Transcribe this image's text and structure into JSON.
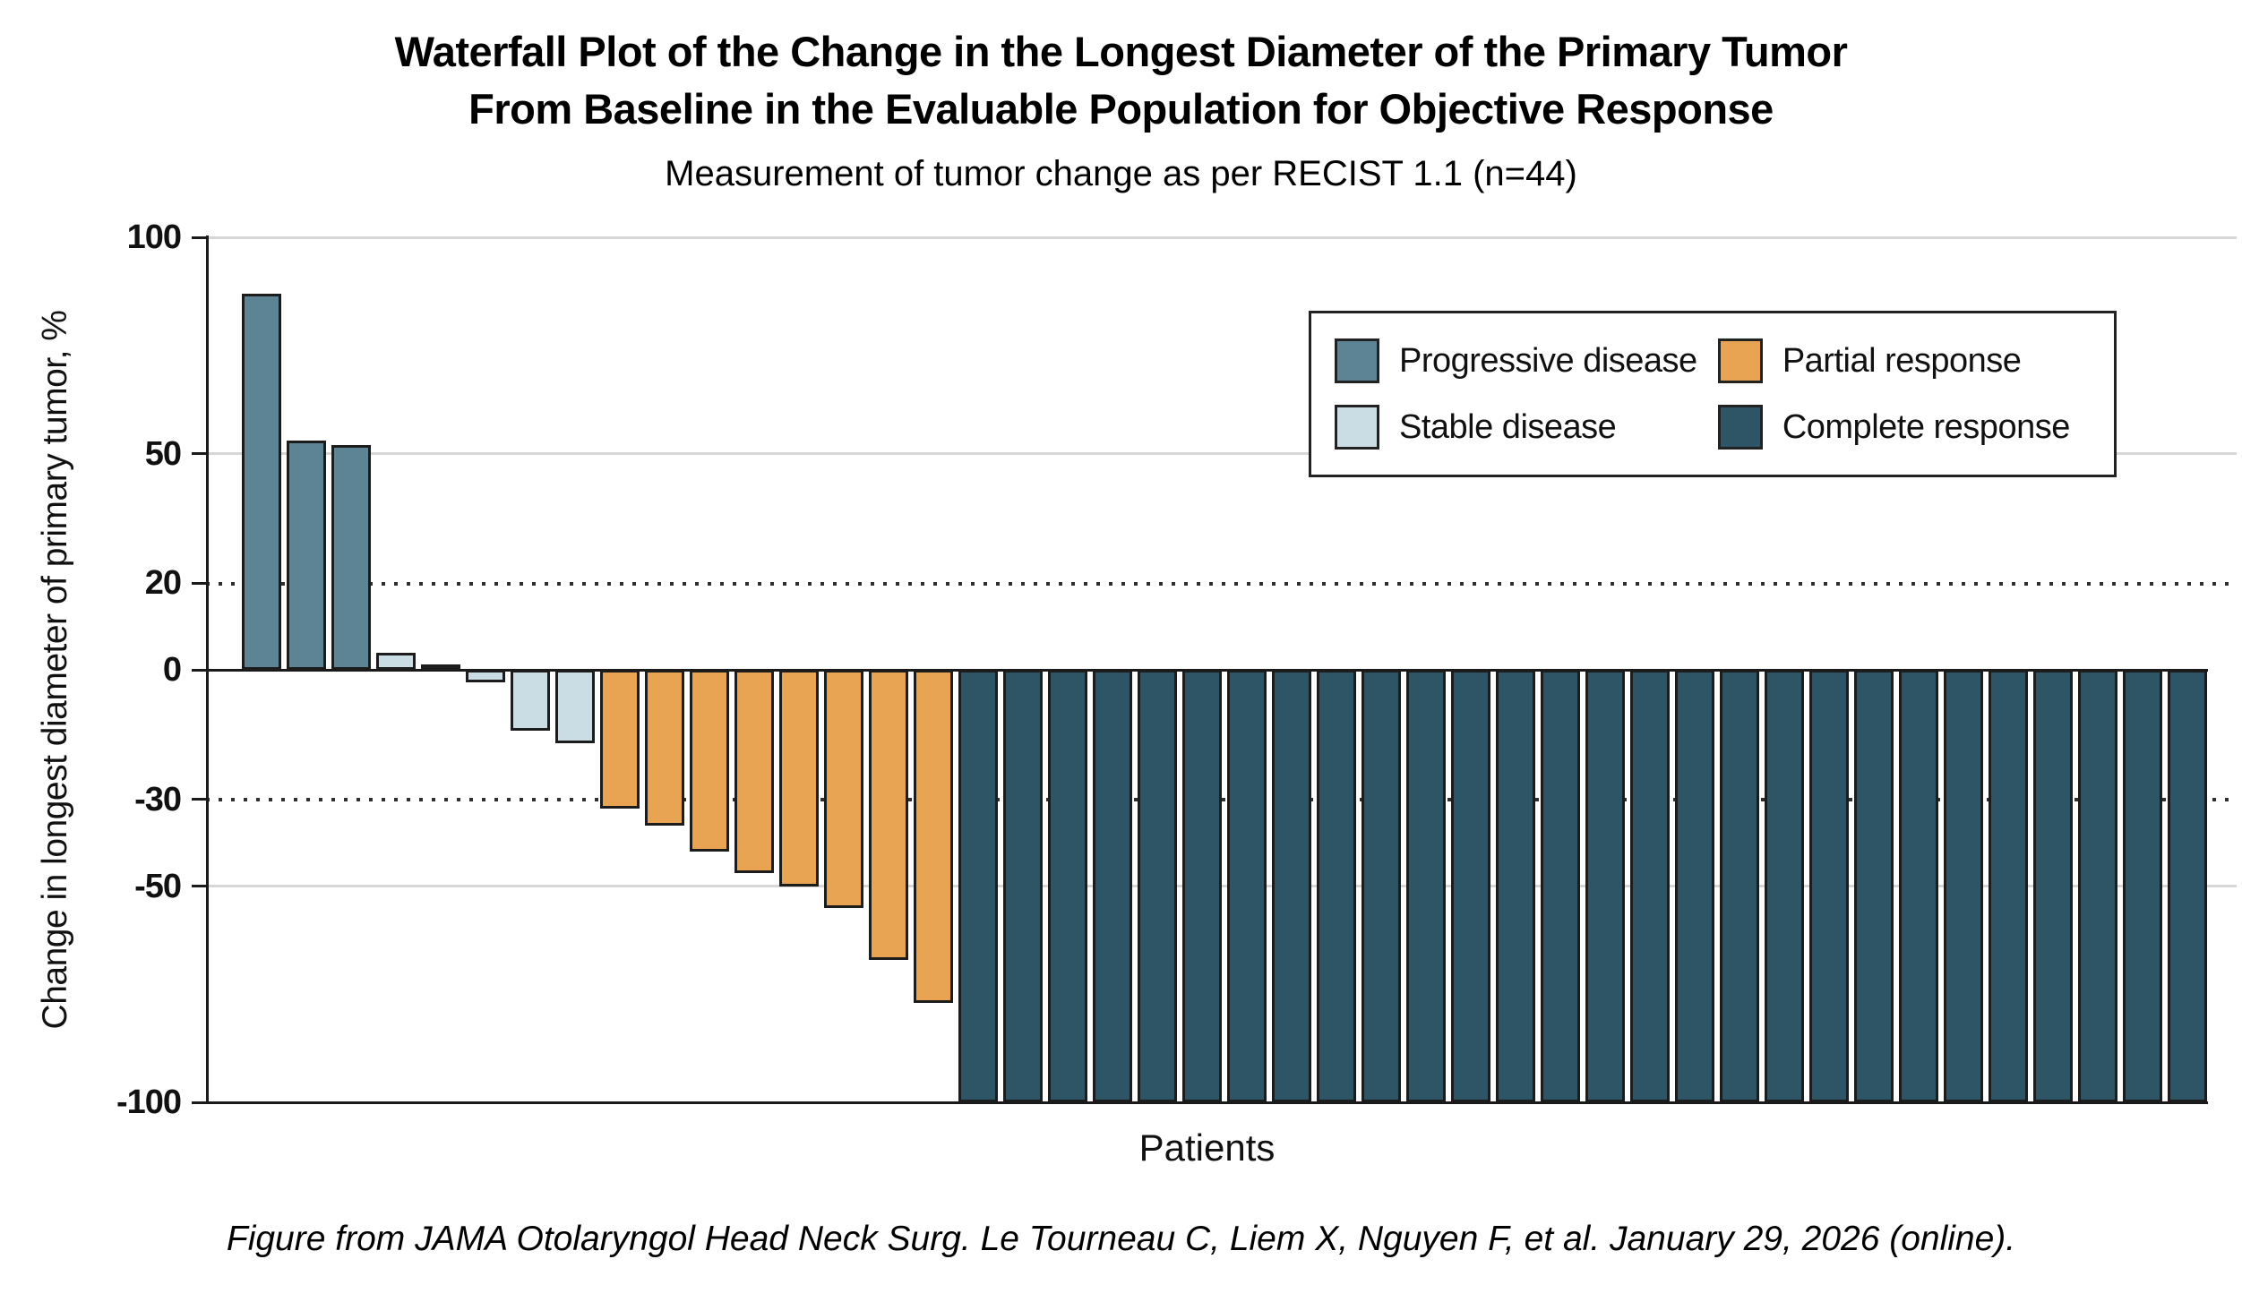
{
  "header": {
    "title_line1": "Waterfall Plot of the Change in the Longest Diameter of the Primary Tumor",
    "title_line2": "From Baseline in the Evaluable Population for Objective Response",
    "subtitle": "Measurement of tumor change as per RECIST 1.1 (n=44)"
  },
  "chart_data": {
    "type": "bar",
    "title": "Waterfall Plot of the Change in the Longest Diameter of the Primary Tumor From Baseline in the Evaluable Population for Objective Response",
    "subtitle": "Measurement of tumor change as per RECIST 1.1 (n=44)",
    "xlabel": "Patients",
    "ylabel": "Change in longest diameter of primary tumor, %",
    "n": 44,
    "ylim": [
      -100,
      100
    ],
    "y_ticks": [
      100,
      50,
      20,
      0,
      -30,
      -50,
      -100
    ],
    "gridlines": {
      "solid_gray": [
        100,
        50,
        -50
      ],
      "dotted_black": [
        20,
        -30
      ],
      "solid_black": [
        0,
        -100
      ]
    },
    "legend_position": "upper right",
    "legend": [
      {
        "key": "progressive",
        "label": "Progressive disease",
        "color": "#5c8495"
      },
      {
        "key": "stable",
        "label": "Stable disease",
        "color": "#cadce4"
      },
      {
        "key": "partial",
        "label": "Partial response",
        "color": "#e8a353"
      },
      {
        "key": "complete",
        "label": "Complete response",
        "color": "#2e5566"
      }
    ],
    "bars": [
      {
        "value": 87,
        "response": "progressive"
      },
      {
        "value": 53,
        "response": "progressive"
      },
      {
        "value": 52,
        "response": "progressive"
      },
      {
        "value": 4,
        "response": "stable"
      },
      {
        "value": 1,
        "response": "stable"
      },
      {
        "value": -3,
        "response": "stable"
      },
      {
        "value": -14,
        "response": "stable"
      },
      {
        "value": -17,
        "response": "stable"
      },
      {
        "value": -32,
        "response": "partial"
      },
      {
        "value": -36,
        "response": "partial"
      },
      {
        "value": -42,
        "response": "partial"
      },
      {
        "value": -47,
        "response": "partial"
      },
      {
        "value": -50,
        "response": "partial"
      },
      {
        "value": -55,
        "response": "partial"
      },
      {
        "value": -67,
        "response": "partial"
      },
      {
        "value": -77,
        "response": "partial"
      },
      {
        "value": -100,
        "response": "complete"
      },
      {
        "value": -100,
        "response": "complete"
      },
      {
        "value": -100,
        "response": "complete"
      },
      {
        "value": -100,
        "response": "complete"
      },
      {
        "value": -100,
        "response": "complete"
      },
      {
        "value": -100,
        "response": "complete"
      },
      {
        "value": -100,
        "response": "complete"
      },
      {
        "value": -100,
        "response": "complete"
      },
      {
        "value": -100,
        "response": "complete"
      },
      {
        "value": -100,
        "response": "complete"
      },
      {
        "value": -100,
        "response": "complete"
      },
      {
        "value": -100,
        "response": "complete"
      },
      {
        "value": -100,
        "response": "complete"
      },
      {
        "value": -100,
        "response": "complete"
      },
      {
        "value": -100,
        "response": "complete"
      },
      {
        "value": -100,
        "response": "complete"
      },
      {
        "value": -100,
        "response": "complete"
      },
      {
        "value": -100,
        "response": "complete"
      },
      {
        "value": -100,
        "response": "complete"
      },
      {
        "value": -100,
        "response": "complete"
      },
      {
        "value": -100,
        "response": "complete"
      },
      {
        "value": -100,
        "response": "complete"
      },
      {
        "value": -100,
        "response": "complete"
      },
      {
        "value": -100,
        "response": "complete"
      },
      {
        "value": -100,
        "response": "complete"
      },
      {
        "value": -100,
        "response": "complete"
      },
      {
        "value": -100,
        "response": "complete"
      },
      {
        "value": -100,
        "response": "complete"
      }
    ]
  },
  "footer": {
    "caption": "Figure from JAMA Otolaryngol Head Neck Surg. Le Tourneau C, Liem X, Nguyen F, et al. January 29, 2026 (online)."
  }
}
